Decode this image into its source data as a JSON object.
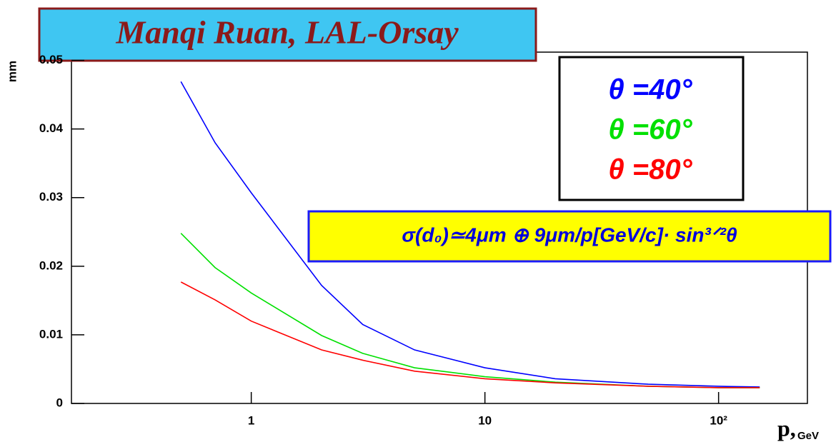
{
  "chart_data": {
    "type": "line",
    "annotation": "Manqi Ruan, LAL-Orsay",
    "formula": "σ(d₀)≃4μm ⊕ 9μm/p[GeV/c]· sin³ᐟ²θ",
    "ylabel": "mm",
    "xlabel": "p,",
    "xunit": "GeV",
    "x": [
      0.5,
      0.7,
      1,
      2,
      3,
      5,
      10,
      20,
      50,
      100,
      150
    ],
    "series": [
      {
        "name": "θ =40°",
        "color": "#0000ff",
        "values": [
          0.0469,
          0.038,
          0.0307,
          0.0172,
          0.0115,
          0.0078,
          0.0052,
          0.0036,
          0.0028,
          0.0025,
          0.0024
        ]
      },
      {
        "name": "θ =60°",
        "color": "#00e000",
        "values": [
          0.0248,
          0.0198,
          0.0161,
          0.0099,
          0.0073,
          0.0052,
          0.0039,
          0.0031,
          0.0025,
          0.0023,
          0.0023
        ]
      },
      {
        "name": "θ =80°",
        "color": "#ff0000",
        "values": [
          0.0177,
          0.0151,
          0.012,
          0.0078,
          0.0063,
          0.0047,
          0.0036,
          0.003,
          0.0025,
          0.0023,
          0.0023
        ]
      }
    ],
    "xlog": true,
    "xlim": [
      0.17,
      240
    ],
    "xticks": [
      1,
      10,
      {
        "value": 100,
        "label": "10²"
      }
    ],
    "ylim": [
      0,
      0.0512
    ],
    "yticks": [
      0,
      0.01,
      0.02,
      0.03,
      0.04,
      0.05
    ]
  }
}
